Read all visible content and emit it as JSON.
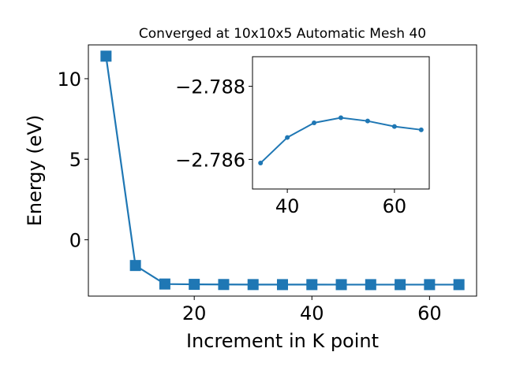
{
  "chart_data": [
    {
      "type": "line",
      "title": "Converged at 10x10x5 Automatic Mesh 40",
      "x_label": "Increment in K point",
      "y_label": "Energy (eV)",
      "x": [
        5,
        10,
        15,
        20,
        25,
        30,
        35,
        40,
        45,
        50,
        55,
        60,
        65
      ],
      "values": [
        11.4,
        -1.6,
        -2.75,
        -2.77,
        -2.78,
        -2.784,
        -2.7859,
        -2.7866,
        -2.787,
        -2.7871,
        -2.787,
        -2.7869,
        -2.7868
      ],
      "color": "#1f77b4",
      "marker": "square",
      "xlim": [
        2,
        68
      ],
      "ylim": [
        -3.5,
        12.1
      ],
      "xticks": [
        20,
        40,
        60
      ],
      "yticks": [
        0,
        5,
        10
      ]
    },
    {
      "type": "line",
      "x": [
        35,
        40,
        45,
        50,
        55,
        60,
        65
      ],
      "values": [
        -2.7859,
        -2.7866,
        -2.787,
        -2.78714,
        -2.78705,
        -2.7869,
        -2.78681
      ],
      "color": "#1f77b4",
      "marker": "circle",
      "xlim": [
        33.5,
        66.5
      ],
      "ylim": [
        -2.78519,
        -2.78881
      ],
      "xticks": [
        40,
        60
      ],
      "yticks": [
        {
          "value": -2.788,
          "label": "−2.788"
        },
        {
          "value": -2.786,
          "label": "−2.786"
        }
      ]
    }
  ]
}
